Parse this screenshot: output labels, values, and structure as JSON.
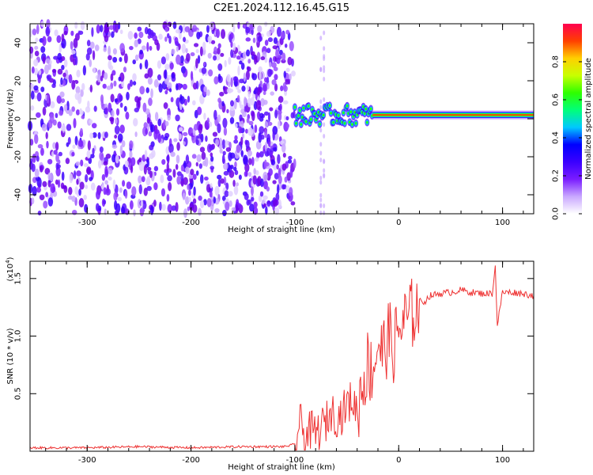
{
  "chart_data": [
    {
      "type": "heatmap",
      "title": "C2E1.2024.112.16.45.G15",
      "xlabel": "Height of straight line (km)",
      "ylabel": "Frequency (Hz)",
      "xlim": [
        -355,
        130
      ],
      "ylim": [
        -50,
        50
      ],
      "x_ticks": [
        -300,
        -200,
        -100,
        0,
        100
      ],
      "y_ticks": [
        -40,
        -20,
        0,
        20,
        40
      ],
      "colorbar": {
        "label": "Normalized spectral amplitude",
        "range": [
          0,
          1
        ],
        "ticks": [
          0.0,
          0.2,
          0.4,
          0.6,
          0.8
        ],
        "colors": [
          "#ffffff",
          "#c9a8ff",
          "#7a1cff",
          "#3a00ff",
          "#0000ff",
          "#00c8ff",
          "#00ff7a",
          "#2eff00",
          "#c8ff00",
          "#ffd000",
          "#ff4000",
          "#ff0050"
        ]
      },
      "signal_track": {
        "x_start": -100,
        "x_end": 130,
        "center_freq_hz": 2,
        "scatter_region_x": [
          -355,
          -100
        ]
      }
    },
    {
      "type": "line",
      "xlabel": "Height of straight line (km)",
      "ylabel": "SNR (10 * v/v)",
      "y_scale_label": "(x10",
      "y_scale_exp": "4",
      "y_scale_close": ")",
      "xlim": [
        -355,
        130
      ],
      "ylim": [
        0,
        1.65
      ],
      "x_ticks": [
        -300,
        -200,
        -100,
        0,
        100
      ],
      "y_ticks": [
        0.5,
        1.0,
        1.5
      ],
      "y_tick_labels": [
        "0.5",
        "1.0",
        "1.5"
      ],
      "color": "#ee3333",
      "x": [
        -355,
        -300,
        -250,
        -200,
        -150,
        -110,
        -100,
        -95,
        -90,
        -85,
        -80,
        -75,
        -70,
        -65,
        -60,
        -55,
        -50,
        -45,
        -40,
        -35,
        -30,
        -25,
        -20,
        -15,
        -10,
        -5,
        0,
        5,
        10,
        15,
        20,
        25,
        30,
        40,
        50,
        60,
        70,
        80,
        90,
        93,
        95,
        100,
        110,
        120,
        130
      ],
      "y": [
        0.03,
        0.03,
        0.04,
        0.03,
        0.04,
        0.04,
        0.06,
        0.25,
        0.12,
        0.18,
        0.15,
        0.2,
        0.25,
        0.35,
        0.3,
        0.32,
        0.4,
        0.45,
        0.35,
        0.6,
        0.75,
        0.7,
        0.95,
        0.85,
        1.0,
        0.9,
        1.05,
        1.12,
        1.15,
        1.22,
        1.3,
        1.3,
        1.35,
        1.37,
        1.38,
        1.4,
        1.38,
        1.37,
        1.37,
        1.6,
        1.1,
        1.38,
        1.38,
        1.37,
        1.35
      ]
    }
  ]
}
